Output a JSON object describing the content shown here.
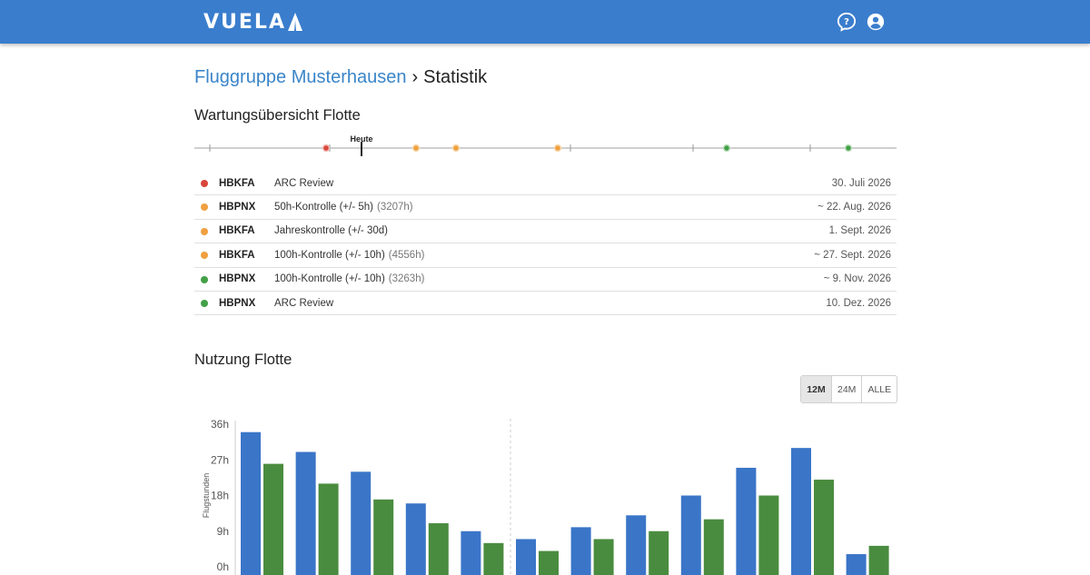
{
  "header": {
    "logo_text": "VUELA",
    "accent_color": "#3a7dcd",
    "icons": [
      "help-icon",
      "account-icon"
    ]
  },
  "breadcrumb": {
    "parent": "Fluggruppe Musterhausen",
    "separator": "›",
    "current": "Statistik"
  },
  "maintenance": {
    "title": "Wartungsübersicht Flotte",
    "today_label": "Heute",
    "colors": {
      "red": "#d9463a",
      "orange": "#f0a040",
      "green": "#43a047"
    },
    "items": [
      {
        "status": "red",
        "registration": "HBKFA",
        "task": "ARC Review",
        "hours": "",
        "date": "30. Juli 2026"
      },
      {
        "status": "orange",
        "registration": "HBPNX",
        "task": "50h-Kontrolle (+/- 5h)",
        "hours": "(3207h)",
        "date": "~ 22. Aug. 2026"
      },
      {
        "status": "orange",
        "registration": "HBKFA",
        "task": "Jahreskontrolle (+/- 30d)",
        "hours": "",
        "date": "1. Sept. 2026"
      },
      {
        "status": "orange",
        "registration": "HBKFA",
        "task": "100h-Kontrolle (+/- 10h)",
        "hours": "(4556h)",
        "date": "~ 27. Sept. 2026"
      },
      {
        "status": "green",
        "registration": "HBPNX",
        "task": "100h-Kontrolle (+/- 10h)",
        "hours": "(3263h)",
        "date": "~ 9. Nov. 2026"
      },
      {
        "status": "green",
        "registration": "HBPNX",
        "task": "ARC Review",
        "hours": "",
        "date": "10. Dez. 2026"
      }
    ]
  },
  "usage": {
    "title": "Nutzung Flotte",
    "ranges": [
      {
        "label": "12M",
        "active": true
      },
      {
        "label": "24M",
        "active": false
      },
      {
        "label": "ALLE",
        "active": false
      }
    ]
  },
  "chart_data": {
    "type": "bar",
    "ylabel": "Flugstunden",
    "ylim": [
      0,
      36
    ],
    "yticks": [
      "0h",
      "9h",
      "18h",
      "27h",
      "36h"
    ],
    "series": [
      {
        "color": "#3a75c8",
        "values": [
          34,
          29,
          24,
          16,
          9,
          7,
          10,
          13,
          18,
          25,
          30,
          3.2
        ]
      },
      {
        "color": "#4a8c3f",
        "values": [
          26,
          21,
          17,
          11,
          6,
          4,
          7,
          9,
          12,
          18,
          22,
          5.3
        ]
      }
    ],
    "divider_after_index": 4,
    "grid": false
  }
}
